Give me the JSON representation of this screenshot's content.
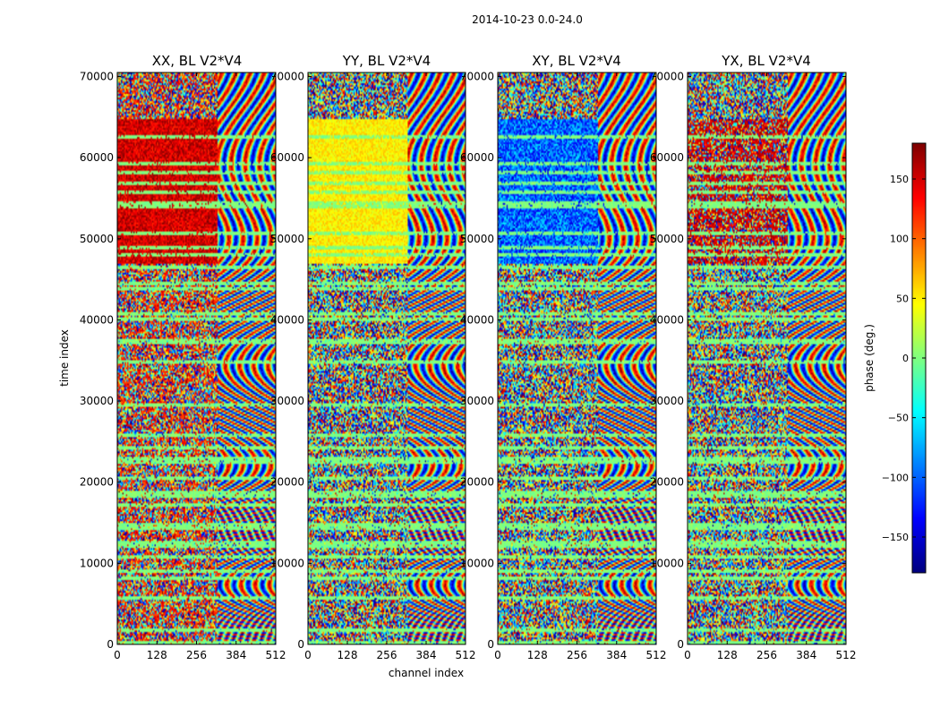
{
  "chart_data": {
    "type": "heatmap",
    "suptitle": "2014-10-23 0.0-24.0",
    "xlabel": "channel index",
    "ylabel": "time index",
    "xlim": [
      0,
      512
    ],
    "ylim": [
      0,
      70500
    ],
    "x_ticks": [
      0,
      128,
      256,
      384,
      512
    ],
    "y_ticks": [
      0,
      10000,
      20000,
      30000,
      40000,
      50000,
      60000,
      70000
    ],
    "panels": [
      {
        "name": "XX",
        "title": "XX, BL V2*V4"
      },
      {
        "name": "YY",
        "title": "YY, BL V2*V4"
      },
      {
        "name": "XY",
        "title": "XY, BL V2*V4"
      },
      {
        "name": "YX",
        "title": "YX, BL V2*V4"
      }
    ],
    "colorbar": {
      "label": "phase (deg.)",
      "range": [
        -180,
        180
      ],
      "ticks": [
        150,
        100,
        50,
        0,
        -50,
        -100,
        -150
      ],
      "colormap": "jet"
    }
  }
}
